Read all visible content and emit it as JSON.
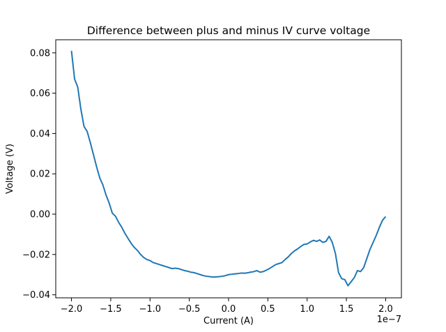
{
  "chart_data": {
    "type": "line",
    "title": "Difference between plus and minus IV curve voltage",
    "xlabel": "Current (A)",
    "ylabel": "Voltage (V)",
    "x_offset_text": "1e−7",
    "x_scale": 1e-07,
    "xlim": [
      -2.2,
      2.2
    ],
    "ylim": [
      -0.0415,
      0.0865
    ],
    "x_ticks": [
      -2.0,
      -1.5,
      -1.0,
      -0.5,
      0.0,
      0.5,
      1.0,
      1.5,
      2.0
    ],
    "x_tick_labels": [
      "−2.0",
      "−1.5",
      "−1.0",
      "−0.5",
      "0.0",
      "0.5",
      "1.0",
      "1.5",
      "2.0"
    ],
    "y_ticks": [
      -0.04,
      -0.02,
      0.0,
      0.02,
      0.04,
      0.06,
      0.08
    ],
    "y_tick_labels": [
      "−0.04",
      "−0.02",
      "0.00",
      "0.02",
      "0.04",
      "0.06",
      "0.08"
    ],
    "grid": false,
    "color": "#1f77b4",
    "series": [
      {
        "x": [
          -2.0,
          -1.96,
          -1.92,
          -1.88,
          -1.84,
          -1.8,
          -1.76,
          -1.72,
          -1.68,
          -1.64,
          -1.6,
          -1.56,
          -1.52,
          -1.48,
          -1.44,
          -1.4,
          -1.36,
          -1.32,
          -1.28,
          -1.24,
          -1.2,
          -1.16,
          -1.12,
          -1.08,
          -1.04,
          -1.0,
          -0.96,
          -0.92,
          -0.88,
          -0.84,
          -0.8,
          -0.76,
          -0.72,
          -0.68,
          -0.64,
          -0.6,
          -0.56,
          -0.52,
          -0.48,
          -0.44,
          -0.4,
          -0.36,
          -0.32,
          -0.28,
          -0.24,
          -0.2,
          -0.16,
          -0.12,
          -0.08,
          -0.04,
          0.0,
          0.04,
          0.08,
          0.12,
          0.16,
          0.2,
          0.24,
          0.28,
          0.32,
          0.36,
          0.4,
          0.44,
          0.48,
          0.52,
          0.56,
          0.6,
          0.64,
          0.68,
          0.72,
          0.76,
          0.8,
          0.84,
          0.88,
          0.92,
          0.96,
          1.0,
          1.04,
          1.08,
          1.12,
          1.16,
          1.2,
          1.24,
          1.28,
          1.32,
          1.36,
          1.4,
          1.44,
          1.48,
          1.52,
          1.56,
          1.6,
          1.64,
          1.68,
          1.72,
          1.76,
          1.8,
          1.84,
          1.88,
          1.92,
          1.96,
          2.0
        ],
        "y": [
          0.081,
          0.067,
          0.063,
          0.052,
          0.0435,
          0.041,
          0.0355,
          0.0295,
          0.0235,
          0.018,
          0.0145,
          0.0095,
          0.0055,
          0.0005,
          -0.001,
          -0.004,
          -0.0065,
          -0.0095,
          -0.012,
          -0.0145,
          -0.0165,
          -0.018,
          -0.02,
          -0.0215,
          -0.0225,
          -0.023,
          -0.024,
          -0.0245,
          -0.025,
          -0.0255,
          -0.026,
          -0.0265,
          -0.027,
          -0.0268,
          -0.027,
          -0.0275,
          -0.028,
          -0.0283,
          -0.0288,
          -0.029,
          -0.0295,
          -0.03,
          -0.0305,
          -0.0308,
          -0.031,
          -0.0312,
          -0.0311,
          -0.031,
          -0.0308,
          -0.0305,
          -0.03,
          -0.0298,
          -0.0296,
          -0.0295,
          -0.0292,
          -0.0293,
          -0.0291,
          -0.0288,
          -0.0285,
          -0.028,
          -0.0288,
          -0.0285,
          -0.0278,
          -0.027,
          -0.026,
          -0.025,
          -0.0245,
          -0.024,
          -0.0225,
          -0.0212,
          -0.0195,
          -0.0182,
          -0.0172,
          -0.016,
          -0.015,
          -0.0148,
          -0.0138,
          -0.013,
          -0.0135,
          -0.0128,
          -0.014,
          -0.0135,
          -0.011,
          -0.014,
          -0.0195,
          -0.029,
          -0.032,
          -0.0325,
          -0.0355,
          -0.0335,
          -0.0315,
          -0.028,
          -0.0285,
          -0.0265,
          -0.022,
          -0.0175,
          -0.014,
          -0.0105,
          -0.0065,
          -0.003,
          -0.0012
        ]
      }
    ]
  }
}
